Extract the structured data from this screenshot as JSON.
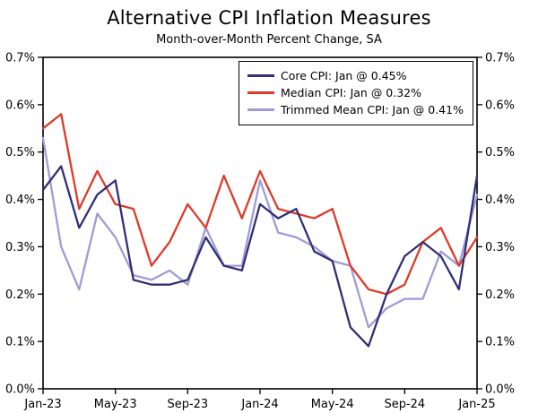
{
  "chart_data": {
    "type": "line",
    "title": "Alternative CPI Inflation Measures",
    "subtitle": "Month-over-Month Percent Change, SA",
    "ylim": [
      0.0,
      0.7
    ],
    "yticks": [
      0.0,
      0.1,
      0.2,
      0.3,
      0.4,
      0.5,
      0.6,
      0.7
    ],
    "ytick_format": "percent-1dp",
    "grid": false,
    "legend_position": "top-center-inside",
    "x": [
      "Jan-23",
      "Feb-23",
      "Mar-23",
      "Apr-23",
      "May-23",
      "Jun-23",
      "Jul-23",
      "Aug-23",
      "Sep-23",
      "Oct-23",
      "Nov-23",
      "Dec-23",
      "Jan-24",
      "Feb-24",
      "Mar-24",
      "Apr-24",
      "May-24",
      "Jun-24",
      "Jul-24",
      "Aug-24",
      "Sep-24",
      "Oct-24",
      "Nov-24",
      "Dec-24",
      "Jan-25"
    ],
    "xtick_indices": [
      0,
      4,
      8,
      12,
      16,
      20,
      24
    ],
    "series": [
      {
        "name": "Core CPI",
        "legend": "Core CPI: Jan @ 0.45%",
        "color": "#312f76",
        "values": [
          0.42,
          0.47,
          0.34,
          0.41,
          0.44,
          0.23,
          0.22,
          0.22,
          0.23,
          0.32,
          0.26,
          0.25,
          0.39,
          0.36,
          0.38,
          0.29,
          0.27,
          0.13,
          0.09,
          0.2,
          0.28,
          0.31,
          0.28,
          0.21,
          0.45
        ]
      },
      {
        "name": "Median CPI",
        "legend": "Median CPI: Jan @ 0.32%",
        "color": "#df3a28",
        "values": [
          0.55,
          0.58,
          0.38,
          0.46,
          0.39,
          0.38,
          0.26,
          0.31,
          0.39,
          0.34,
          0.45,
          0.36,
          0.46,
          0.38,
          0.37,
          0.36,
          0.38,
          0.26,
          0.21,
          0.2,
          0.22,
          0.31,
          0.34,
          0.26,
          0.32
        ]
      },
      {
        "name": "Trimmed Mean CPI",
        "legend": "Trimmed Mean CPI: Jan @ 0.41%",
        "color": "#9e9cd8",
        "values": [
          0.53,
          0.3,
          0.21,
          0.37,
          0.32,
          0.24,
          0.23,
          0.25,
          0.22,
          0.34,
          0.26,
          0.26,
          0.44,
          0.33,
          0.32,
          0.3,
          0.27,
          0.26,
          0.13,
          0.17,
          0.19,
          0.19,
          0.29,
          0.26,
          0.41
        ]
      }
    ]
  }
}
